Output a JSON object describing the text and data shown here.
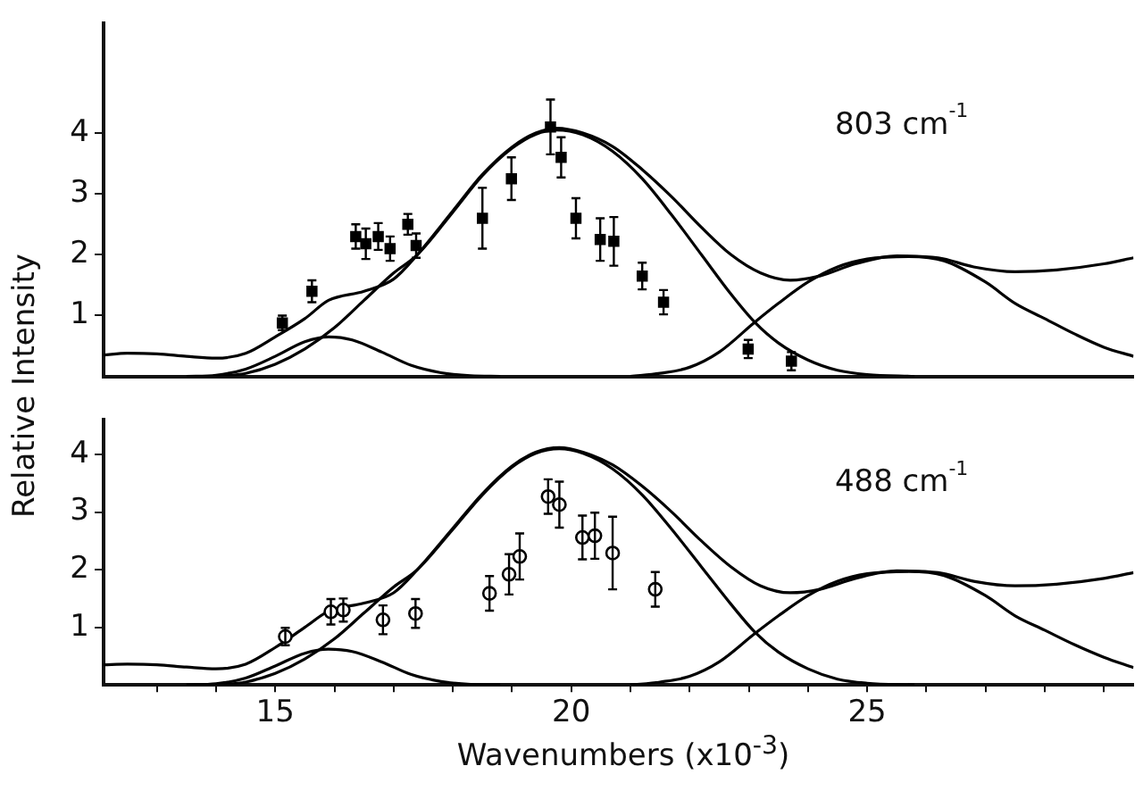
{
  "chart_data": [
    {
      "type": "scatter",
      "ylabel": "Relative Intensity",
      "annotations": [
        "803 cm$^{-1}$"
      ],
      "xlim": [
        12.1,
        29.5
      ],
      "ylim": [
        0,
        5.8
      ],
      "yticks": [
        1,
        2,
        3,
        4
      ],
      "tick_labels": "y",
      "series": [
        {
          "type": "line",
          "color": "#000000",
          "x": [
            13.5,
            14,
            14.5,
            15,
            15.5,
            15.9,
            16.3,
            16.8,
            17.3,
            17.8,
            18.3,
            18.8
          ],
          "values": [
            0,
            0.02,
            0.12,
            0.33,
            0.57,
            0.65,
            0.6,
            0.4,
            0.18,
            0.06,
            0.01,
            0
          ]
        },
        {
          "type": "line",
          "color": "#000000",
          "x": [
            14,
            14.5,
            15,
            15.5,
            16,
            16.5,
            17,
            17.4,
            18,
            18.5,
            19,
            19.4,
            19.75,
            20.2,
            20.7,
            21.2,
            21.7,
            22.2,
            22.7,
            23.1,
            23.5,
            24,
            24.5,
            25,
            25.8
          ],
          "values": [
            0,
            0.05,
            0.2,
            0.45,
            0.8,
            1.25,
            1.7,
            2,
            2.7,
            3.3,
            3.75,
            3.98,
            4.05,
            3.97,
            3.7,
            3.25,
            2.65,
            2,
            1.35,
            0.89,
            0.55,
            0.27,
            0.1,
            0.03,
            0
          ]
        },
        {
          "type": "line",
          "color": "#000000",
          "x": [
            21,
            21.5,
            22,
            22.5,
            23.1,
            23.5,
            24,
            24.5,
            25,
            25.7,
            26.3,
            27,
            27.5,
            28,
            28.5,
            29,
            29.5
          ],
          "values": [
            0,
            0.05,
            0.15,
            0.4,
            0.89,
            1.2,
            1.55,
            1.8,
            1.93,
            1.97,
            1.9,
            1.55,
            1.2,
            0.95,
            0.7,
            0.48,
            0.33
          ]
        },
        {
          "type": "line",
          "color": "#000000",
          "x": [
            12.1,
            12.5,
            13,
            13.5,
            14,
            14.5,
            15,
            15.5,
            15.9,
            16.5,
            17,
            17.4,
            18,
            18.5,
            19,
            19.4,
            19.75,
            20.2,
            20.7,
            21.2,
            21.7,
            22.2,
            22.7,
            23.2,
            23.7,
            24.2,
            24.8,
            25.5,
            26.2,
            26.8,
            27.5,
            28.2,
            29,
            29.5
          ],
          "values": [
            0.35,
            0.38,
            0.37,
            0.33,
            0.3,
            0.38,
            0.65,
            0.95,
            1.25,
            1.4,
            1.6,
            2,
            2.72,
            3.32,
            3.77,
            4,
            4.08,
            4,
            3.78,
            3.4,
            2.95,
            2.45,
            2,
            1.7,
            1.58,
            1.65,
            1.85,
            1.98,
            1.95,
            1.8,
            1.72,
            1.75,
            1.85,
            1.95
          ]
        },
        {
          "marker": "square",
          "color": "#000000",
          "x": [
            15.12,
            15.62,
            16.36,
            16.53,
            16.74,
            16.94,
            17.24,
            17.38,
            18.5,
            18.99,
            19.65,
            19.83,
            20.08,
            20.49,
            20.72,
            21.2,
            21.56,
            22.99,
            23.72
          ],
          "values": [
            0.88,
            1.4,
            2.3,
            2.18,
            2.3,
            2.1,
            2.5,
            2.15,
            2.6,
            3.25,
            4.1,
            3.6,
            2.6,
            2.25,
            2.22,
            1.65,
            1.22,
            0.45,
            0.25
          ],
          "errors": [
            0.12,
            0.18,
            0.2,
            0.25,
            0.22,
            0.2,
            0.17,
            0.2,
            0.5,
            0.35,
            0.45,
            0.33,
            0.33,
            0.35,
            0.4,
            0.22,
            0.2,
            0.15,
            0.15
          ]
        }
      ]
    },
    {
      "type": "scatter",
      "xlabel": "Wavenumbers (x10$^{-3}$)",
      "annotations": [
        "488 cm$^{-1}$"
      ],
      "xlim": [
        12.1,
        29.5
      ],
      "ylim": [
        0,
        4.6
      ],
      "yticks": [
        1,
        2,
        3,
        4
      ],
      "xticks": [
        {
          "value": 13,
          "label": null
        },
        {
          "value": 14,
          "label": null
        },
        15,
        {
          "value": 16,
          "label": null
        },
        {
          "value": 17,
          "label": null
        },
        {
          "value": 18,
          "label": null
        },
        {
          "value": 19,
          "label": null
        },
        20,
        {
          "value": 21,
          "label": null
        },
        {
          "value": 22,
          "label": null
        },
        {
          "value": 23,
          "label": null
        },
        {
          "value": 24,
          "label": null
        },
        25,
        {
          "value": 26,
          "label": null
        },
        {
          "value": 27,
          "label": null
        },
        {
          "value": 28,
          "label": null
        },
        {
          "value": 29,
          "label": null
        }
      ],
      "series": [
        {
          "type": "line",
          "color": "#000000",
          "x": [
            13.5,
            14,
            14.5,
            15,
            15.5,
            15.9,
            16.3,
            16.8,
            17.3,
            17.8,
            18.3,
            18.8
          ],
          "values": [
            0,
            0.02,
            0.12,
            0.33,
            0.55,
            0.62,
            0.58,
            0.4,
            0.18,
            0.06,
            0.01,
            0
          ]
        },
        {
          "type": "line",
          "color": "#000000",
          "x": [
            14,
            14.5,
            15,
            15.5,
            16,
            16.5,
            17,
            17.4,
            18,
            18.5,
            19,
            19.4,
            19.8,
            20.2,
            20.7,
            21.2,
            21.7,
            22.2,
            22.7,
            23.1,
            23.5,
            24,
            24.5,
            25,
            25.8
          ],
          "values": [
            0,
            0.05,
            0.2,
            0.45,
            0.8,
            1.25,
            1.7,
            2,
            2.7,
            3.3,
            3.78,
            4.02,
            4.1,
            4.02,
            3.75,
            3.3,
            2.7,
            2.05,
            1.4,
            0.92,
            0.57,
            0.28,
            0.1,
            0.03,
            0
          ]
        },
        {
          "type": "line",
          "color": "#000000",
          "x": [
            21,
            21.5,
            22,
            22.5,
            23.1,
            23.5,
            24,
            24.5,
            25,
            25.7,
            26.3,
            27,
            27.5,
            28,
            28.5,
            29,
            29.5
          ],
          "values": [
            0,
            0.05,
            0.15,
            0.4,
            0.89,
            1.2,
            1.55,
            1.8,
            1.93,
            1.97,
            1.9,
            1.55,
            1.2,
            0.95,
            0.7,
            0.48,
            0.3
          ]
        },
        {
          "type": "line",
          "color": "#000000",
          "x": [
            12.1,
            12.5,
            13,
            13.5,
            14,
            14.5,
            15,
            15.5,
            15.9,
            16.5,
            17,
            17.4,
            18,
            18.5,
            19,
            19.4,
            19.8,
            20.2,
            20.7,
            21.2,
            21.7,
            22.2,
            22.7,
            23.2,
            23.7,
            24.2,
            24.8,
            25.5,
            26.2,
            26.8,
            27.5,
            28.2,
            29,
            29.5
          ],
          "values": [
            0.35,
            0.36,
            0.35,
            0.31,
            0.28,
            0.36,
            0.65,
            1,
            1.28,
            1.42,
            1.6,
            2,
            2.72,
            3.32,
            3.8,
            4.04,
            4.12,
            4.04,
            3.82,
            3.45,
            3,
            2.5,
            2.05,
            1.72,
            1.6,
            1.66,
            1.85,
            1.98,
            1.95,
            1.8,
            1.72,
            1.75,
            1.85,
            1.95
          ]
        },
        {
          "marker": "circle",
          "color": "#000000",
          "x": [
            15.17,
            15.94,
            16.15,
            16.82,
            17.37,
            18.62,
            18.95,
            19.13,
            19.61,
            19.8,
            20.19,
            20.4,
            20.7,
            21.42
          ],
          "values": [
            0.84,
            1.27,
            1.3,
            1.13,
            1.24,
            1.59,
            1.92,
            2.23,
            3.27,
            3.13,
            2.56,
            2.59,
            2.29,
            1.66
          ],
          "errors": [
            0.15,
            0.22,
            0.2,
            0.25,
            0.25,
            0.3,
            0.35,
            0.4,
            0.3,
            0.4,
            0.38,
            0.4,
            0.63,
            0.3
          ]
        }
      ]
    }
  ]
}
